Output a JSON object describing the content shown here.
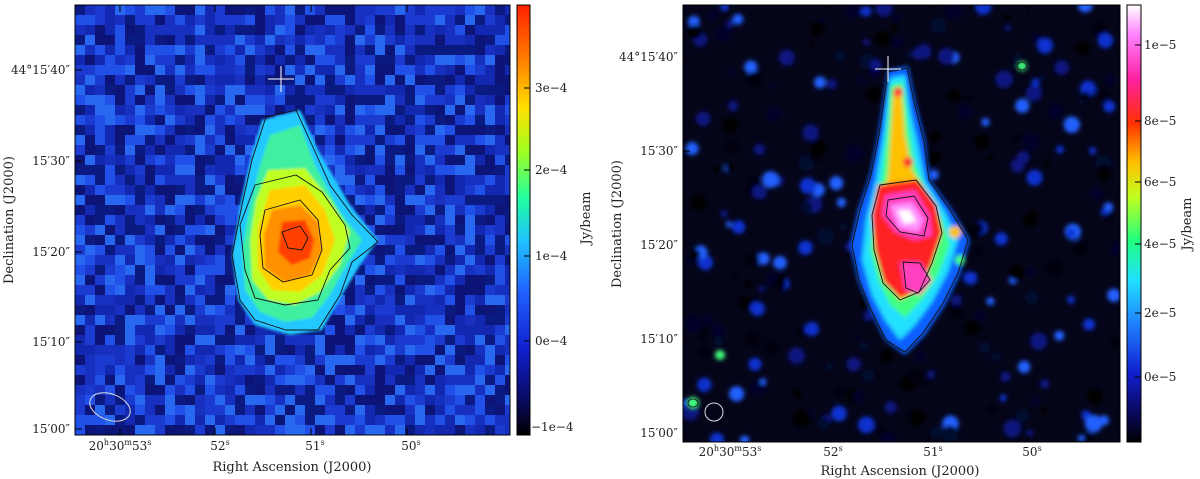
{
  "panels": [
    {
      "id": "left",
      "x_axis_title": "Right Ascension (J2000)",
      "y_axis_title": "Declination (J2000)",
      "x_ticks": [
        {
          "h": "20",
          "m": "30",
          "s": "53",
          "sup_h": "h",
          "sup_m": "m",
          "sup_s": "s"
        },
        {
          "s": "52",
          "sup_s": "s"
        },
        {
          "s": "51",
          "sup_s": "s"
        },
        {
          "s": "50",
          "sup_s": "s"
        }
      ],
      "y_ticks": [
        {
          "label": "44°15′40″"
        },
        {
          "label": "15′30″"
        },
        {
          "label": "15′20″"
        },
        {
          "label": "15′10″"
        },
        {
          "label": "15′00″"
        }
      ],
      "colorbar": {
        "unit_label": "Jy/beam",
        "tick_labels": [
          "3e−4",
          "2e−4",
          "1e−4",
          "0e−4",
          "−1e−4"
        ],
        "colormap": [
          "#000000",
          "#0a0a60",
          "#1020d0",
          "#2060ff",
          "#20c0ff",
          "#20ffa0",
          "#a0ff20",
          "#ffe000",
          "#ff8000",
          "#ff2000"
        ]
      }
    },
    {
      "id": "right",
      "x_axis_title": "Right Ascension (J2000)",
      "y_axis_title": "Declination (J2000)",
      "x_ticks": [
        {
          "h": "20",
          "m": "30",
          "s": "53",
          "sup_h": "h",
          "sup_m": "m",
          "sup_s": "s"
        },
        {
          "s": "52",
          "sup_s": "s"
        },
        {
          "s": "51",
          "sup_s": "s"
        },
        {
          "s": "50",
          "sup_s": "s"
        }
      ],
      "y_ticks": [
        {
          "label": "44°15′40″"
        },
        {
          "label": "15′30″"
        },
        {
          "label": "15′20″"
        },
        {
          "label": "15′10″"
        },
        {
          "label": "15′00″"
        }
      ],
      "colorbar": {
        "unit_label": "Jy/beam",
        "tick_labels": [
          "1e−5",
          "8e−5",
          "6e−5",
          "4e−5",
          "2e−5",
          "0e−5"
        ],
        "colormap": [
          "#000000",
          "#0a0a60",
          "#1020d0",
          "#2080ff",
          "#20e0ff",
          "#20ff80",
          "#c0ff20",
          "#ffc000",
          "#ff3000",
          "#ff20a0",
          "#ff80ff",
          "#ffffff"
        ]
      }
    }
  ]
}
